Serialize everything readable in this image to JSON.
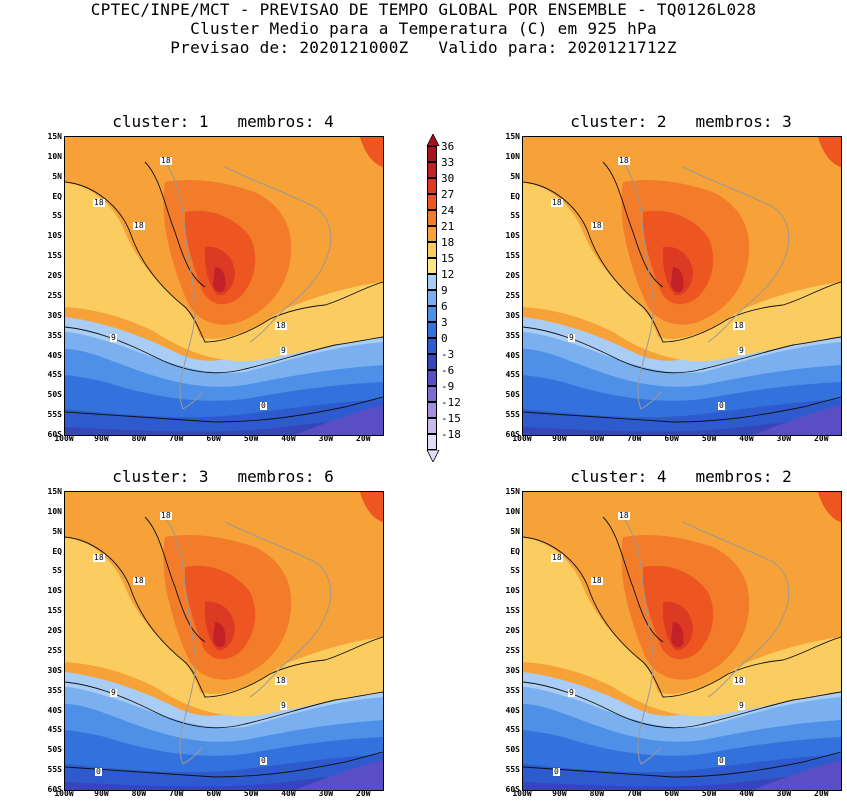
{
  "header": {
    "line1": "CPTEC/INPE/MCT - PREVISAO DE TEMPO GLOBAL POR ENSEMBLE - TQ0126L028",
    "line2": "Cluster Medio para a Temperatura (C) em 925 hPa",
    "line3": "Previsao de: 2020121000Z   Valido para: 2020121712Z"
  },
  "axes": {
    "lat_labels": [
      "15N",
      "10N",
      "5N",
      "EQ",
      "5S",
      "10S",
      "15S",
      "20S",
      "25S",
      "30S",
      "35S",
      "40S",
      "45S",
      "50S",
      "55S",
      "60S"
    ],
    "lon_labels": [
      "100W",
      "90W",
      "80W",
      "70W",
      "60W",
      "50W",
      "40W",
      "30W",
      "20W"
    ]
  },
  "colorbar": {
    "labels": [
      "36",
      "33",
      "30",
      "27",
      "24",
      "21",
      "18",
      "15",
      "12",
      "9",
      "6",
      "3",
      "0",
      "-3",
      "-6",
      "-9",
      "-12",
      "-15",
      "-18"
    ],
    "colors": [
      "#a5141b",
      "#c22227",
      "#dc3a23",
      "#ed5521",
      "#f27c2a",
      "#f7a239",
      "#fbcc5f",
      "#fde68a",
      "#a9cdf4",
      "#7bb0f0",
      "#4e8fe8",
      "#3372dc",
      "#2d5bcd",
      "#3646b8",
      "#5a4ec4",
      "#7d6cd2",
      "#a590e0",
      "#c8b8ec",
      "#e4dcf6"
    ]
  },
  "panels": [
    {
      "title": "cluster: 1   membros: 4",
      "labels": [
        "18",
        "18",
        "18",
        "18",
        "9",
        "9",
        "0"
      ]
    },
    {
      "title": "cluster: 2   membros: 3",
      "labels": [
        "18",
        "18",
        "18",
        "18",
        "9",
        "9",
        "0"
      ]
    },
    {
      "title": "cluster: 3   membros: 6",
      "labels": [
        "18",
        "18",
        "18",
        "18",
        "9",
        "9",
        "0",
        "0"
      ]
    },
    {
      "title": "cluster: 4   membros: 2",
      "labels": [
        "18",
        "18",
        "18",
        "18",
        "9",
        "9",
        "0",
        "0"
      ]
    }
  ]
}
